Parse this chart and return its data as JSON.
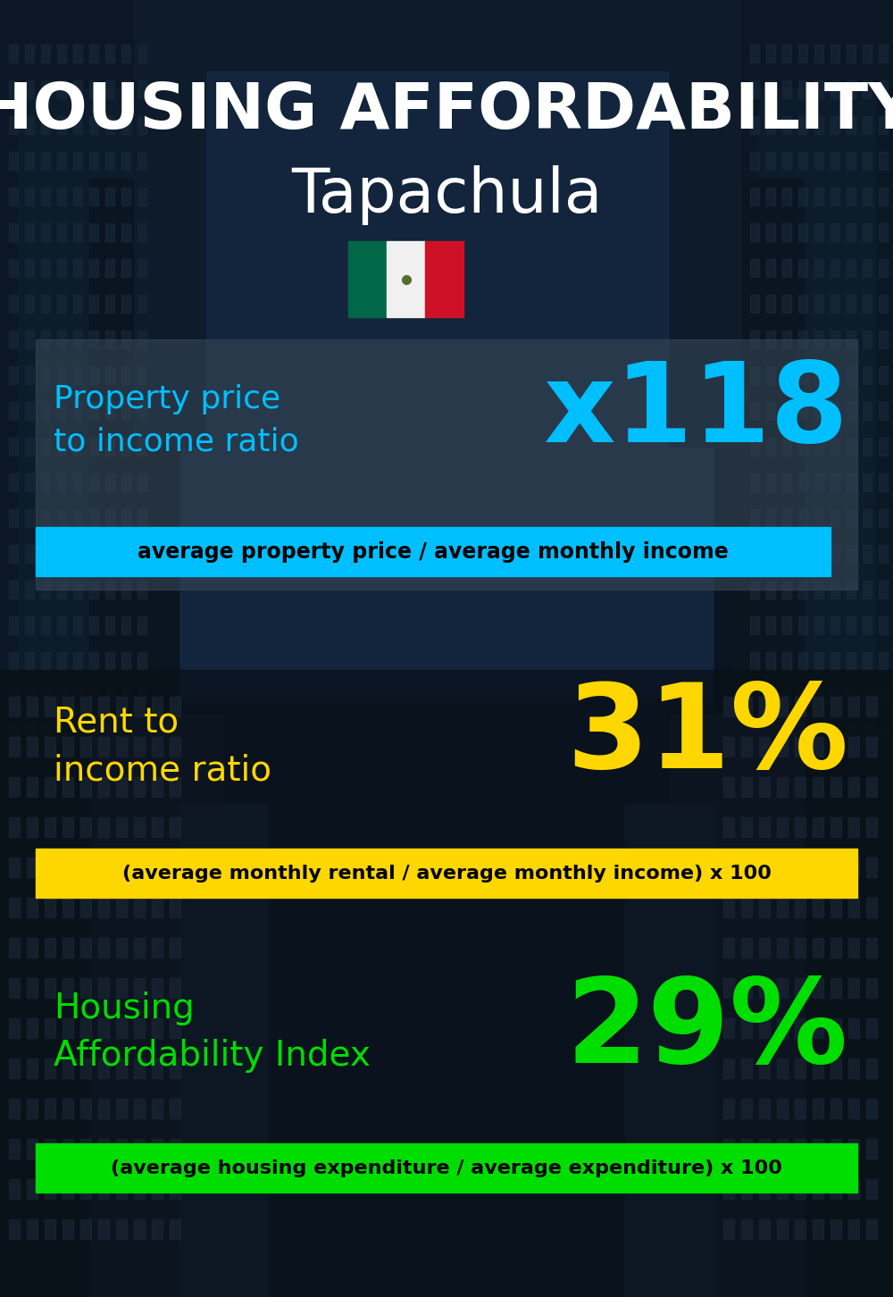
{
  "title_line1": "HOUSING AFFORDABILITY",
  "title_line2": "Tapachula",
  "bg_color": "#0d1b2a",
  "title1_color": "#ffffff",
  "title2_color": "#ffffff",
  "section1_label": "Property price\nto income ratio",
  "section1_value": "x118",
  "section1_label_color": "#00bfff",
  "section1_value_color": "#00bfff",
  "section1_banner": "average property price / average monthly income",
  "section1_banner_bg": "#00bfff",
  "section1_banner_color": "#000000",
  "section2_label": "Rent to\nincome ratio",
  "section2_value": "31%",
  "section2_label_color": "#ffd700",
  "section2_value_color": "#ffd700",
  "section2_banner": "(average monthly rental / average monthly income) x 100",
  "section2_banner_bg": "#ffd700",
  "section2_banner_color": "#000000",
  "section3_label": "Housing\nAffordability Index",
  "section3_value": "29%",
  "section3_label_color": "#00dd00",
  "section3_value_color": "#00dd00",
  "section3_banner": "(average housing expenditure / average expenditure) x 100",
  "section3_banner_bg": "#00dd00",
  "section3_banner_color": "#000000",
  "flag_green": "#006847",
  "flag_white": "#f0f0f0",
  "flag_red": "#ce1126",
  "panel1_bg": "#2a3a4a",
  "panel1_alpha": 0.6
}
